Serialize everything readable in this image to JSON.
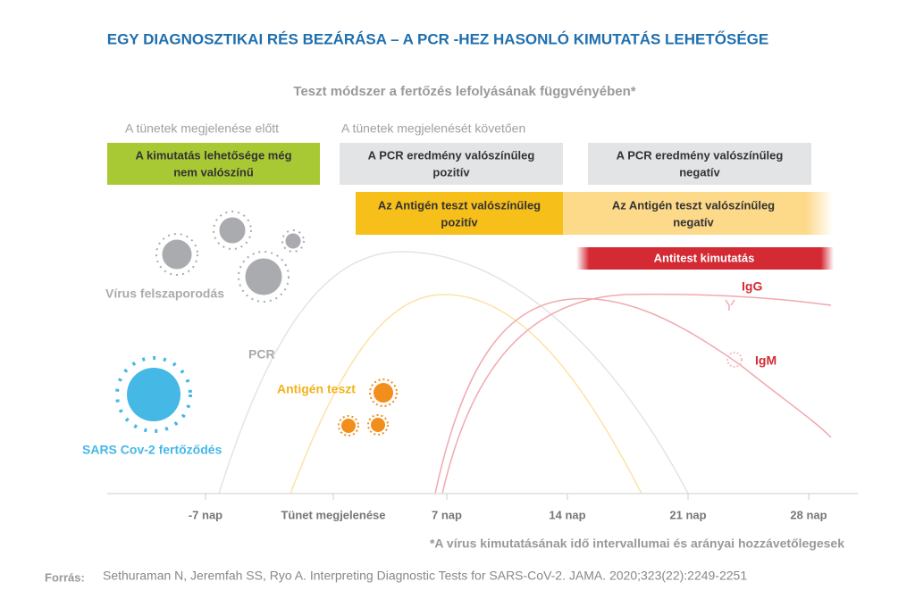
{
  "header": {
    "title": "EGY DIAGNOSZTIKAI RÉS BEZÁRÁSA –  A PCR -HEZ HASONLÓ KIMUTATÁS LEHETŐSÉGE",
    "subtitle": "Teszt módszer a fertőzés lefolyásának függvényében*"
  },
  "phases": [
    "A tünetek megjelenése előtt",
    "A tünetek megjelenését követően"
  ],
  "boxes": [
    {
      "lines": [
        "A kimutatás lehetősége még",
        "nem valószínű"
      ]
    },
    {
      "lines": [
        "A PCR eredmény valószínűleg",
        "pozitív"
      ]
    },
    {
      "lines": [
        "A PCR eredmény valószínűleg",
        "negatív"
      ]
    },
    {
      "lines": [
        "Az Antigén teszt valószínűleg",
        "pozitív"
      ]
    },
    {
      "lines": [
        "Az Antigén teszt valószínűleg",
        "negatív"
      ]
    },
    {
      "lines": [
        "Antitest kimutatás"
      ]
    }
  ],
  "labels": {
    "virus": "Vírus felszaporodás",
    "pcr": "PCR",
    "antigen": "Antigén teszt",
    "infection": "SARS Cov-2 fertőződés",
    "igg": "IgG",
    "igm": "IgM"
  },
  "axis": [
    "-7 nap",
    "Tünet megjelenése",
    "7 nap",
    "14 nap",
    "21 nap",
    "28 nap"
  ],
  "footnote": "*A vírus kimutatásának idő intervallumai és arányai hozzávetőlegesek",
  "source": {
    "label": "Forrás:",
    "text": "Sethuraman N, Jeremfah SS, Ryo A. Interpreting Diagnostic Tests for SARS-CoV-2. JAMA. 2020;323(22):2249-2251"
  }
}
